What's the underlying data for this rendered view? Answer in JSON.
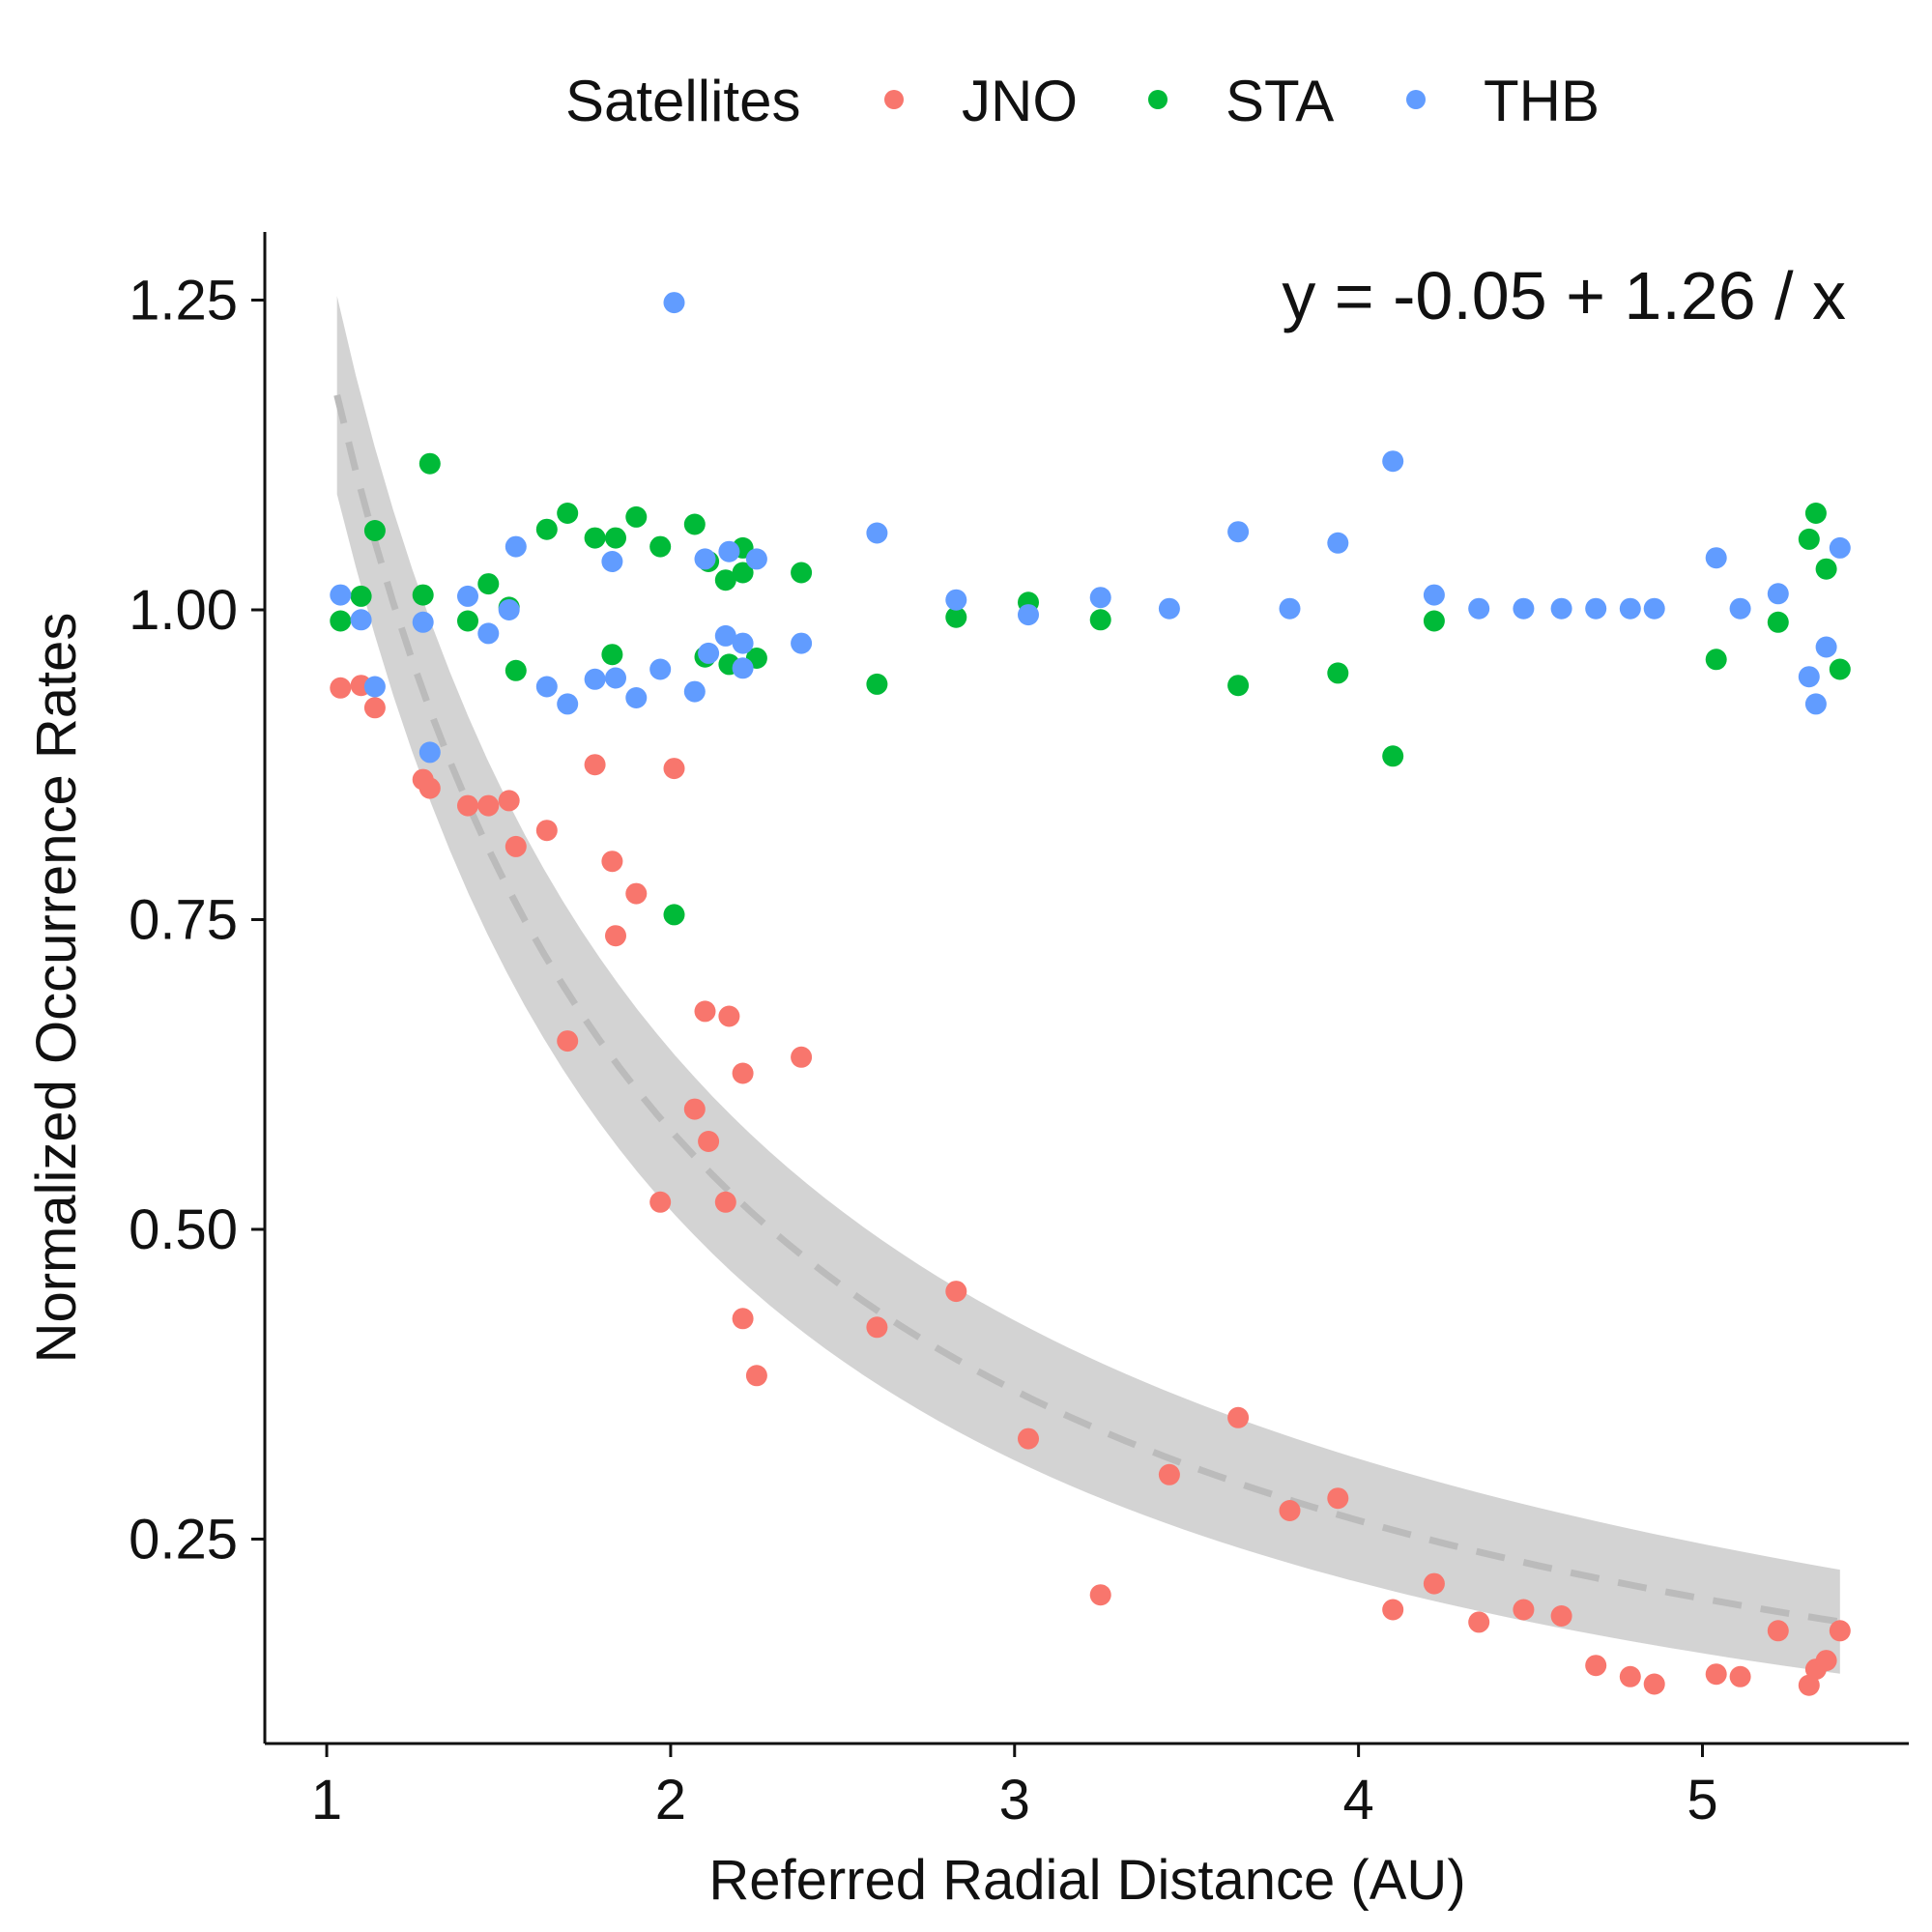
{
  "chart_data": {
    "type": "scatter",
    "xlabel": "Referred Radial Distance (AU)",
    "ylabel": "Normalized Occurrence Rates",
    "xlim": [
      0.82,
      5.6
    ],
    "ylim": [
      0.085,
      1.305
    ],
    "x_ticks": [
      1,
      2,
      3,
      4,
      5
    ],
    "x_tick_labels": [
      "1",
      "2",
      "3",
      "4",
      "5"
    ],
    "y_ticks": [
      0.25,
      0.5,
      0.75,
      1.0,
      1.25
    ],
    "y_tick_labels": [
      "0.25",
      "0.50",
      "0.75",
      "1.00",
      "1.25"
    ],
    "grid": false,
    "legend": {
      "title": "Satellites",
      "position": "top"
    },
    "annotation": "y = -0.05 + 1.26 / x",
    "fit": {
      "intercept": -0.05,
      "slope": 1.26,
      "form": "reciprocal",
      "x_range": [
        1.03,
        5.4
      ],
      "band_halfwidth_start": 0.08,
      "band_halfwidth_end": 0.042,
      "line_color": "#bbbbbb",
      "band_color": "#d3d3d3"
    },
    "series": [
      {
        "name": "JNO",
        "color": "#f8766d",
        "points": [
          [
            1.04,
            0.937
          ],
          [
            1.1,
            0.939
          ],
          [
            1.14,
            0.921
          ],
          [
            1.28,
            0.863
          ],
          [
            1.3,
            0.856
          ],
          [
            1.41,
            0.842
          ],
          [
            1.47,
            0.842
          ],
          [
            1.53,
            0.846
          ],
          [
            1.55,
            0.809
          ],
          [
            1.64,
            0.822
          ],
          [
            1.7,
            0.652
          ],
          [
            1.78,
            0.875
          ],
          [
            1.83,
            0.797
          ],
          [
            1.84,
            0.737
          ],
          [
            1.9,
            0.771
          ],
          [
            1.97,
            0.522
          ],
          [
            2.01,
            0.872
          ],
          [
            2.07,
            0.597
          ],
          [
            2.1,
            0.676
          ],
          [
            2.11,
            0.571
          ],
          [
            2.16,
            0.522
          ],
          [
            2.17,
            0.672
          ],
          [
            2.21,
            0.626
          ],
          [
            2.21,
            0.428
          ],
          [
            2.25,
            0.382
          ],
          [
            2.38,
            0.639
          ],
          [
            2.6,
            0.421
          ],
          [
            2.83,
            0.45
          ],
          [
            3.04,
            0.331
          ],
          [
            3.25,
            0.205
          ],
          [
            3.45,
            0.302
          ],
          [
            3.65,
            0.348
          ],
          [
            3.8,
            0.273
          ],
          [
            3.94,
            0.283
          ],
          [
            4.1,
            0.193
          ],
          [
            4.22,
            0.214
          ],
          [
            4.35,
            0.183
          ],
          [
            4.48,
            0.193
          ],
          [
            4.59,
            0.188
          ],
          [
            4.69,
            0.148
          ],
          [
            4.79,
            0.139
          ],
          [
            4.86,
            0.133
          ],
          [
            5.04,
            0.141
          ],
          [
            5.11,
            0.139
          ],
          [
            5.22,
            0.176
          ],
          [
            5.31,
            0.132
          ],
          [
            5.33,
            0.145
          ],
          [
            5.36,
            0.152
          ],
          [
            5.4,
            0.176
          ]
        ]
      },
      {
        "name": "STA",
        "color": "#00ba38",
        "points": [
          [
            1.04,
            0.991
          ],
          [
            1.1,
            1.011
          ],
          [
            1.14,
            1.064
          ],
          [
            1.28,
            1.012
          ],
          [
            1.3,
            1.118
          ],
          [
            1.41,
            0.991
          ],
          [
            1.47,
            1.021
          ],
          [
            1.53,
            1.002
          ],
          [
            1.55,
            0.951
          ],
          [
            1.64,
            1.065
          ],
          [
            1.7,
            1.078
          ],
          [
            1.78,
            1.058
          ],
          [
            1.83,
            0.964
          ],
          [
            1.84,
            1.058
          ],
          [
            1.9,
            1.075
          ],
          [
            1.97,
            1.051
          ],
          [
            2.01,
            0.754
          ],
          [
            2.07,
            1.069
          ],
          [
            2.1,
            0.962
          ],
          [
            2.11,
            1.039
          ],
          [
            2.16,
            1.024
          ],
          [
            2.17,
            0.956
          ],
          [
            2.21,
            1.05
          ],
          [
            2.21,
            1.03
          ],
          [
            2.25,
            0.961
          ],
          [
            2.38,
            1.03
          ],
          [
            2.6,
            0.94
          ],
          [
            2.83,
            0.994
          ],
          [
            3.04,
            1.006
          ],
          [
            3.25,
            0.992
          ],
          [
            3.65,
            0.939
          ],
          [
            3.94,
            0.949
          ],
          [
            4.1,
            0.882
          ],
          [
            4.22,
            0.991
          ],
          [
            5.04,
            0.96
          ],
          [
            5.22,
            0.99
          ],
          [
            5.31,
            1.057
          ],
          [
            5.33,
            1.078
          ],
          [
            5.36,
            1.033
          ],
          [
            5.4,
            0.952
          ]
        ]
      },
      {
        "name": "THB",
        "color": "#619cff",
        "points": [
          [
            1.04,
            1.012
          ],
          [
            1.1,
            0.992
          ],
          [
            1.14,
            0.938
          ],
          [
            1.28,
            0.99
          ],
          [
            1.3,
            0.885
          ],
          [
            1.41,
            1.011
          ],
          [
            1.47,
            0.981
          ],
          [
            1.53,
            1.0
          ],
          [
            1.55,
            1.051
          ],
          [
            1.64,
            0.938
          ],
          [
            1.7,
            0.924
          ],
          [
            1.78,
            0.944
          ],
          [
            1.83,
            1.039
          ],
          [
            1.84,
            0.945
          ],
          [
            1.9,
            0.929
          ],
          [
            1.97,
            0.952
          ],
          [
            2.01,
            1.248
          ],
          [
            2.07,
            0.934
          ],
          [
            2.1,
            1.041
          ],
          [
            2.11,
            0.965
          ],
          [
            2.16,
            0.979
          ],
          [
            2.17,
            1.047
          ],
          [
            2.21,
            0.973
          ],
          [
            2.21,
            0.953
          ],
          [
            2.25,
            1.041
          ],
          [
            2.38,
            0.973
          ],
          [
            2.6,
            1.062
          ],
          [
            2.83,
            1.008
          ],
          [
            3.04,
            0.996
          ],
          [
            3.25,
            1.01
          ],
          [
            3.45,
            1.001
          ],
          [
            3.65,
            1.063
          ],
          [
            3.8,
            1.001
          ],
          [
            3.94,
            1.054
          ],
          [
            4.1,
            1.12
          ],
          [
            4.22,
            1.012
          ],
          [
            4.35,
            1.001
          ],
          [
            4.48,
            1.001
          ],
          [
            4.59,
            1.001
          ],
          [
            4.69,
            1.001
          ],
          [
            4.79,
            1.001
          ],
          [
            4.86,
            1.001
          ],
          [
            5.04,
            1.042
          ],
          [
            5.11,
            1.001
          ],
          [
            5.22,
            1.013
          ],
          [
            5.31,
            0.946
          ],
          [
            5.33,
            0.924
          ],
          [
            5.36,
            0.97
          ],
          [
            5.4,
            1.05
          ]
        ]
      }
    ]
  }
}
